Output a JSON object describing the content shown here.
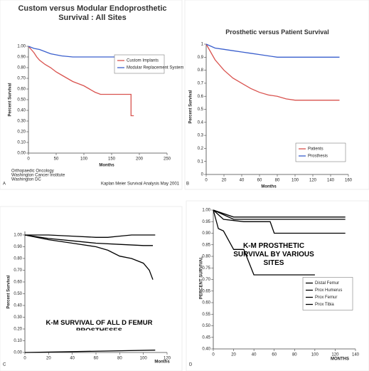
{
  "chart_data": [
    {
      "type": "line",
      "panel_label": "A",
      "title": "Custom versus Modular Endoprosthetic Survival : All Sites",
      "xlabel": "Months",
      "ylabel": "Percent Survival",
      "xlim": [
        0,
        250
      ],
      "ylim": [
        0,
        1
      ],
      "xticks": [
        0,
        50,
        100,
        150,
        200,
        250
      ],
      "yticks": [
        {
          "value": 0,
          "label": "0.00"
        },
        {
          "value": 0.1,
          "label": "0.10"
        },
        {
          "value": 0.2,
          "label": "0.20"
        },
        {
          "value": 0.3,
          "label": "0.30"
        },
        {
          "value": 0.4,
          "label": "0.40"
        },
        {
          "value": 0.5,
          "label": "0.50"
        },
        {
          "value": 0.6,
          "label": "0.60"
        },
        {
          "value": 0.7,
          "label": "0.70"
        },
        {
          "value": 0.8,
          "label": "0.80"
        },
        {
          "value": 0.9,
          "label": "0.90"
        },
        {
          "value": 1,
          "label": "1.00"
        }
      ],
      "legend": "upper right",
      "notes": [
        "Orthopaedic Oncology",
        "Washington Cancer Institute",
        "Washington DC"
      ],
      "source_note": "Kaplan Meier Survival Analysis May 2001",
      "series": [
        {
          "name": "Custom Implants",
          "color": "#d9534f",
          "x": [
            0,
            5,
            10,
            15,
            20,
            30,
            40,
            50,
            60,
            70,
            80,
            90,
            100,
            110,
            120,
            130,
            150,
            170,
            185,
            185,
            190
          ],
          "values": [
            1,
            0.97,
            0.94,
            0.9,
            0.87,
            0.83,
            0.8,
            0.76,
            0.73,
            0.7,
            0.67,
            0.65,
            0.63,
            0.6,
            0.57,
            0.55,
            0.55,
            0.55,
            0.55,
            0.35,
            0.35
          ]
        },
        {
          "name": "Modular Replacement System",
          "color": "#3a5fcd",
          "x": [
            0,
            10,
            20,
            30,
            40,
            50,
            60,
            80,
            100,
            120,
            140,
            160
          ],
          "values": [
            1,
            0.98,
            0.97,
            0.95,
            0.93,
            0.92,
            0.91,
            0.9,
            0.9,
            0.9,
            0.9,
            0.9
          ]
        }
      ]
    },
    {
      "type": "line",
      "panel_label": "B",
      "title": "Prosthetic versus Patient Survival",
      "xlabel": "Months",
      "ylabel": "Percent Survival",
      "xlim": [
        0,
        160
      ],
      "ylim": [
        0,
        1
      ],
      "xticks": [
        0,
        20,
        40,
        60,
        80,
        100,
        120,
        140,
        160
      ],
      "yticks": [
        0,
        0.1,
        0.2,
        0.3,
        0.4,
        0.5,
        0.6,
        0.7,
        0.8,
        0.9,
        1
      ],
      "legend": "lower right",
      "series": [
        {
          "name": "Patients",
          "color": "#d9534f",
          "x": [
            0,
            10,
            20,
            30,
            40,
            50,
            60,
            70,
            80,
            90,
            100,
            120,
            140,
            150
          ],
          "values": [
            1,
            0.88,
            0.8,
            0.74,
            0.7,
            0.66,
            0.63,
            0.61,
            0.6,
            0.58,
            0.57,
            0.57,
            0.57,
            0.57
          ]
        },
        {
          "name": "Prosthesis",
          "color": "#3a5fcd",
          "x": [
            0,
            10,
            20,
            30,
            40,
            50,
            60,
            70,
            80,
            100,
            120,
            140,
            150
          ],
          "values": [
            1,
            0.97,
            0.96,
            0.95,
            0.94,
            0.93,
            0.92,
            0.91,
            0.9,
            0.9,
            0.9,
            0.9,
            0.9
          ]
        }
      ]
    },
    {
      "type": "line",
      "panel_label": "C",
      "title": "K-M SURVIVAL OF ALL D FEMUR PROSTHESES",
      "xlabel": "Months",
      "ylabel": "Percent Survival",
      "xlim": [
        0,
        120
      ],
      "ylim": [
        0,
        1.03
      ],
      "xticks": [
        0,
        20,
        40,
        60,
        80,
        100,
        120
      ],
      "yticks": [
        {
          "value": 0,
          "label": "0.00"
        },
        {
          "value": 0.1,
          "label": "0.10"
        },
        {
          "value": 0.2,
          "label": "0.20"
        },
        {
          "value": 0.3,
          "label": "0.30"
        },
        {
          "value": 0.4,
          "label": "0.40"
        },
        {
          "value": 0.5,
          "label": "0.50"
        },
        {
          "value": 0.6,
          "label": "0.60"
        },
        {
          "value": 0.7,
          "label": "0.70"
        },
        {
          "value": 0.8,
          "label": "0.80"
        },
        {
          "value": 0.9,
          "label": "0.90"
        },
        {
          "value": 1,
          "label": "1.00"
        }
      ],
      "series": [
        {
          "color": "#000000",
          "x": [
            0,
            20,
            40,
            60,
            70,
            80,
            90,
            100,
            110
          ],
          "values": [
            1,
            1,
            0.99,
            0.98,
            0.98,
            0.99,
            1,
            1,
            1
          ]
        },
        {
          "color": "#000000",
          "x": [
            0,
            20,
            40,
            60,
            80,
            100,
            108
          ],
          "values": [
            1,
            0.97,
            0.95,
            0.93,
            0.92,
            0.91,
            0.91
          ]
        },
        {
          "color": "#000000",
          "x": [
            0,
            20,
            40,
            60,
            70,
            80,
            90,
            100,
            105,
            108
          ],
          "values": [
            1,
            0.96,
            0.93,
            0.9,
            0.87,
            0.82,
            0.8,
            0.76,
            0.7,
            0.62
          ]
        },
        {
          "color": "#000000",
          "x": [
            0,
            110
          ],
          "values": [
            0,
            0.02
          ]
        }
      ]
    },
    {
      "type": "line",
      "panel_label": "D",
      "title": "K-M PROSTHETIC SURVIVAL BY VARIOUS SITES",
      "xlabel": "MONTHS",
      "ylabel": "PERCENT SURVIVAL",
      "xlim": [
        0,
        140
      ],
      "ylim": [
        0.4,
        1
      ],
      "xticks": [
        0,
        20,
        40,
        60,
        80,
        100,
        120,
        140
      ],
      "yticks": [
        {
          "value": 0.4,
          "label": "0.40"
        },
        {
          "value": 0.45,
          "label": "0.45"
        },
        {
          "value": 0.5,
          "label": "0.50"
        },
        {
          "value": 0.55,
          "label": "0.55"
        },
        {
          "value": 0.6,
          "label": "0.60"
        },
        {
          "value": 0.65,
          "label": "0.65"
        },
        {
          "value": 0.7,
          "label": "0.70"
        },
        {
          "value": 0.75,
          "label": "0.75"
        },
        {
          "value": 0.8,
          "label": "0.80"
        },
        {
          "value": 0.85,
          "label": "0.85"
        },
        {
          "value": 0.9,
          "label": "0.90"
        },
        {
          "value": 0.95,
          "label": "0.95"
        },
        {
          "value": 1,
          "label": "1.00"
        }
      ],
      "legend": "center right",
      "series": [
        {
          "name": "Distal Femur",
          "color": "#000000",
          "x": [
            0,
            10,
            20,
            60,
            100,
            130
          ],
          "values": [
            1,
            0.98,
            0.96,
            0.96,
            0.96,
            0.96
          ]
        },
        {
          "name": "Prox Humerus",
          "color": "#000000",
          "x": [
            0,
            20,
            40,
            80,
            130
          ],
          "values": [
            1,
            0.97,
            0.97,
            0.97,
            0.97
          ]
        },
        {
          "name": "Prox Femur",
          "color": "#000000",
          "x": [
            0,
            10,
            30,
            56,
            60,
            100,
            130
          ],
          "values": [
            1,
            0.96,
            0.95,
            0.95,
            0.9,
            0.9,
            0.9
          ]
        },
        {
          "name": "Prox Tibia",
          "color": "#000000",
          "x": [
            0,
            5,
            10,
            20,
            30,
            40,
            60,
            100
          ],
          "values": [
            1,
            0.92,
            0.91,
            0.83,
            0.83,
            0.72,
            0.72,
            0.72
          ]
        }
      ]
    }
  ]
}
